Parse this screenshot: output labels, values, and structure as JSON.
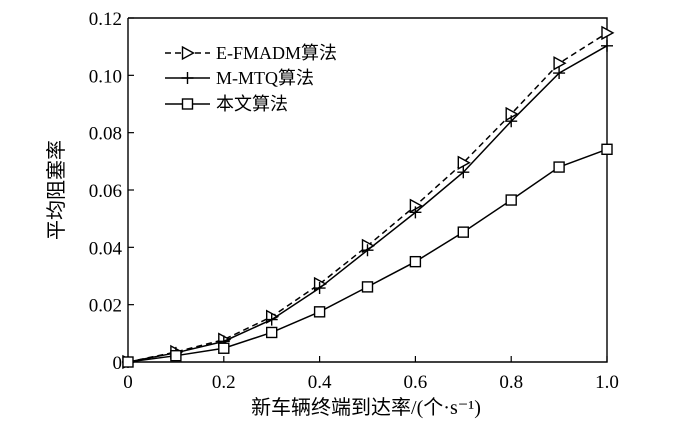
{
  "chart_data": {
    "type": "line",
    "xlabel": "新车辆终端到达率/(个·s⁻¹)",
    "ylabel": "平均阻塞率",
    "xlim": [
      0,
      1.0
    ],
    "ylim": [
      0,
      0.12
    ],
    "xticks": [
      "0",
      "0.2",
      "0.4",
      "0.6",
      "0.8",
      "1.0"
    ],
    "yticks": [
      "0",
      "0.02",
      "0.04",
      "0.06",
      "0.08",
      "0.10",
      "0.12"
    ],
    "grid": false,
    "legend_position": "top-left",
    "x": [
      0,
      0.1,
      0.2,
      0.3,
      0.4,
      0.5,
      0.6,
      0.7,
      0.8,
      0.9,
      1.0
    ],
    "series": [
      {
        "name": "E-FMADM算法",
        "marker": "triangle-right",
        "line_style": "dashed",
        "values": [
          0,
          0.0035,
          0.0078,
          0.0158,
          0.0272,
          0.0405,
          0.0545,
          0.0695,
          0.0865,
          0.1042,
          0.1148
        ]
      },
      {
        "name": "M-MTQ算法",
        "marker": "plus",
        "line_style": "solid",
        "values": [
          0,
          0.0032,
          0.0072,
          0.0148,
          0.0258,
          0.039,
          0.0522,
          0.0662,
          0.084,
          0.1008,
          0.1103
        ]
      },
      {
        "name": "本文算法",
        "marker": "square",
        "line_style": "solid",
        "values": [
          0,
          0.0022,
          0.0048,
          0.0103,
          0.0175,
          0.0262,
          0.035,
          0.0453,
          0.0565,
          0.068,
          0.0742
        ]
      }
    ]
  }
}
